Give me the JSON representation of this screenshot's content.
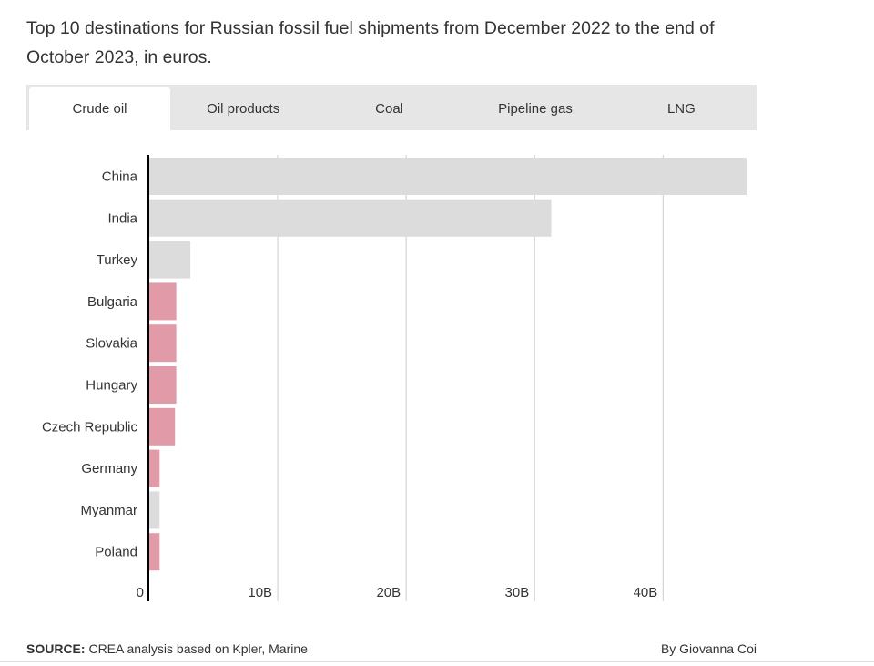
{
  "headline": "Top 10 destinations for Russian fossil fuel shipments from December 2022 to the end of October 2023, in euros.",
  "tabs": [
    {
      "label": "Crude oil",
      "active": true
    },
    {
      "label": "Oil products",
      "active": false
    },
    {
      "label": "Coal",
      "active": false
    },
    {
      "label": "Pipeline gas",
      "active": false
    },
    {
      "label": "LNG",
      "active": false
    }
  ],
  "colors": {
    "bar_default": "#dcdcdc",
    "bar_highlight": "#e09aa8",
    "grid": "#cccccc",
    "axis": "#000000"
  },
  "chart_data": {
    "type": "bar",
    "orientation": "horizontal",
    "categories": [
      "China",
      "India",
      "Turkey",
      "Bulgaria",
      "Slovakia",
      "Hungary",
      "Czech Republic",
      "Germany",
      "Myanmar",
      "Poland"
    ],
    "values": [
      46.5,
      31.3,
      3.2,
      2.1,
      2.1,
      2.1,
      2.0,
      0.8,
      0.8,
      0.8
    ],
    "highlight": [
      false,
      false,
      false,
      true,
      true,
      true,
      true,
      true,
      false,
      true
    ],
    "unit": "billion euros",
    "xlim": [
      0,
      46.5
    ],
    "xticks": [
      0,
      10,
      20,
      30,
      40
    ],
    "xtick_labels": [
      "0",
      "10B",
      "20B",
      "30B",
      "40B"
    ],
    "grid": true
  },
  "footer": {
    "source_label": "SOURCE:",
    "source_text": " CREA analysis based on Kpler, Marine",
    "credit": "By Giovanna Coi"
  }
}
